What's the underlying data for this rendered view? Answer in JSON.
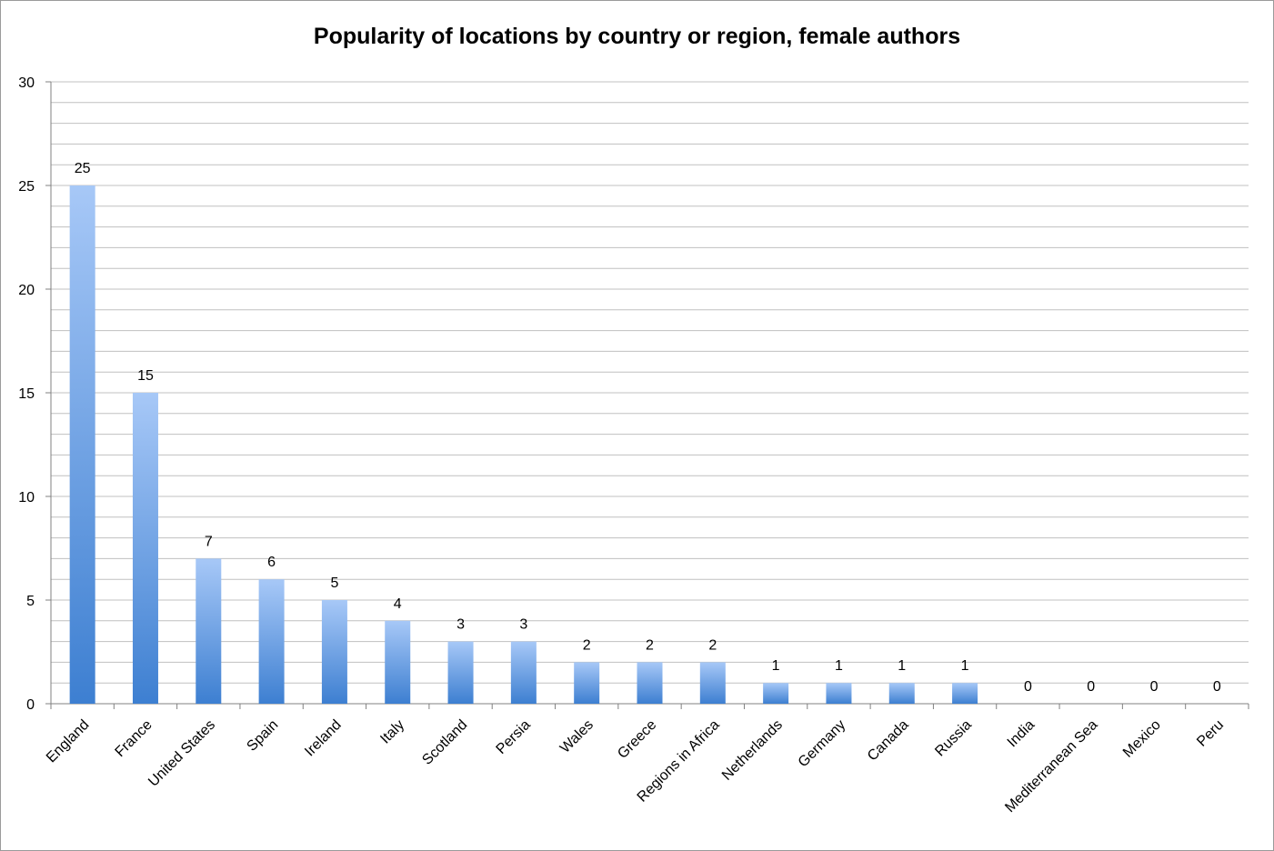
{
  "chart_data": {
    "type": "bar",
    "title": "Popularity of locations by country or region, female authors",
    "xlabel": "",
    "ylabel": "",
    "ylim": [
      0,
      30
    ],
    "y_ticks": [
      0,
      5,
      10,
      15,
      20,
      25,
      30
    ],
    "minor_step": 1,
    "grid": true,
    "legend": "none",
    "categories": [
      "England",
      "France",
      "United States",
      "Spain",
      "Ireland",
      "Italy",
      "Scotland",
      "Persia",
      "Wales",
      "Greece",
      "Regions in Africa",
      "Netherlands",
      "Germany",
      "Canada",
      "Russia",
      "India",
      "Mediterranean Sea",
      "Mexico",
      "Peru"
    ],
    "values": [
      25,
      15,
      7,
      6,
      5,
      4,
      3,
      3,
      2,
      2,
      2,
      1,
      1,
      1,
      1,
      0,
      0,
      0,
      0
    ],
    "colors": {
      "bar_top": "#a7c8f7",
      "bar_bottom": "#3d7fd1",
      "grid": "#c0c0c0",
      "axis": "#808080"
    }
  }
}
